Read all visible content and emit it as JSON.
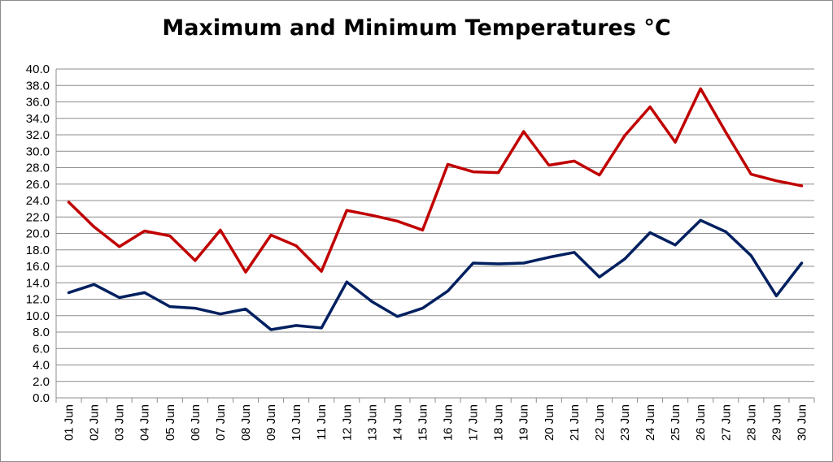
{
  "chart_data": {
    "type": "line",
    "title": "Maximum and Minimum Temperatures °C",
    "xlabel": "",
    "ylabel": "",
    "ylim": [
      0,
      40
    ],
    "y_ticks": [
      "0.0",
      "2.0",
      "4.0",
      "6.0",
      "8.0",
      "10.0",
      "12.0",
      "14.0",
      "16.0",
      "18.0",
      "20.0",
      "22.0",
      "24.0",
      "26.0",
      "28.0",
      "30.0",
      "32.0",
      "34.0",
      "36.0",
      "38.0",
      "40.0"
    ],
    "grid": true,
    "legend": "none",
    "categories": [
      "01 Jun",
      "02 Jun",
      "03 Jun",
      "04 Jun",
      "05 Jun",
      "06 Jun",
      "07 Jun",
      "08 Jun",
      "09 Jun",
      "10 Jun",
      "11 Jun",
      "12 Jun",
      "13 Jun",
      "14 Jun",
      "15 Jun",
      "16 Jun",
      "17 Jun",
      "18 Jun",
      "19 Jun",
      "20 Jun",
      "21 Jun",
      "22 Jun",
      "23 Jun",
      "24 Jun",
      "25 Jun",
      "26 Jun",
      "27 Jun",
      "28 Jun",
      "29 Jun",
      "30 Jun"
    ],
    "series": [
      {
        "color": "#c00000",
        "values": [
          23.8,
          20.8,
          18.4,
          20.3,
          19.7,
          16.7,
          20.4,
          15.3,
          19.8,
          18.5,
          15.4,
          22.8,
          22.2,
          21.5,
          20.4,
          28.4,
          27.5,
          27.4,
          32.4,
          28.3,
          28.8,
          27.1,
          31.9,
          35.4,
          31.1,
          37.6,
          32.3,
          27.2,
          26.4,
          25.8
        ]
      },
      {
        "color": "#002060",
        "values": [
          12.8,
          13.8,
          12.2,
          12.8,
          11.1,
          10.9,
          10.2,
          10.8,
          8.3,
          8.8,
          8.5,
          14.1,
          11.7,
          9.9,
          10.9,
          13.0,
          16.4,
          16.3,
          16.4,
          17.1,
          17.7,
          14.7,
          16.9,
          20.1,
          18.6,
          21.6,
          20.2,
          17.3,
          12.4,
          16.4
        ]
      }
    ]
  }
}
